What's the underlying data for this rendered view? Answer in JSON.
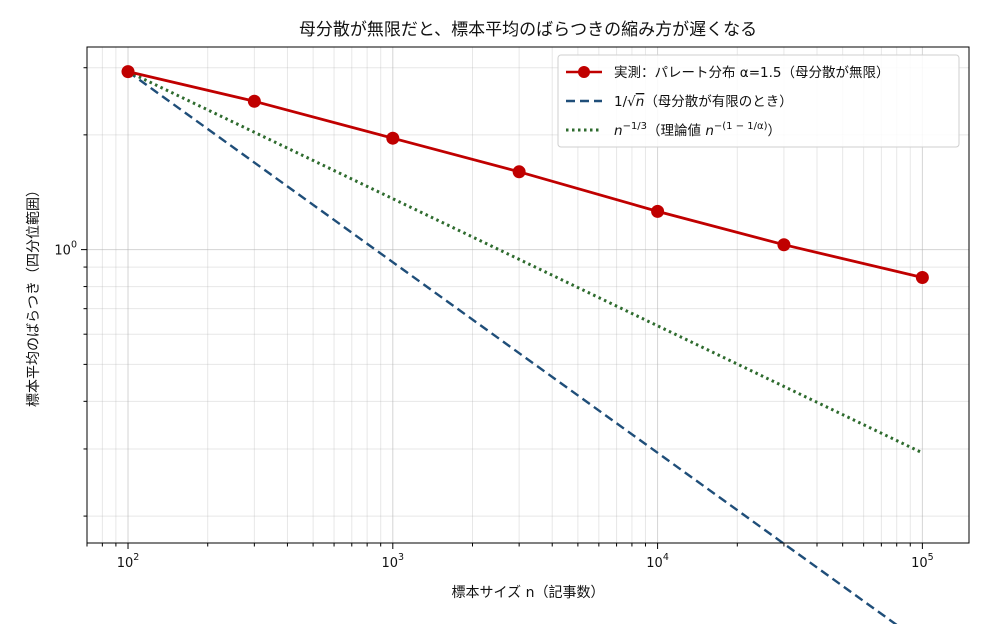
{
  "chart_data": {
    "type": "line",
    "title": "母分散が無限だと、標本平均のばらつきの縮み方が遅くなる",
    "xlabel": "標本サイズ n（記事数）",
    "ylabel": "標本平均のばらつき（四分位範囲）",
    "xscale": "log",
    "yscale": "log",
    "xlim": [
      70,
      150000
    ],
    "ylim": [
      0.17,
      3.4
    ],
    "x_ticks": [
      {
        "value": 100,
        "base": "10",
        "exp": "2"
      },
      {
        "value": 1000,
        "base": "10",
        "exp": "3"
      },
      {
        "value": 10000,
        "base": "10",
        "exp": "4"
      },
      {
        "value": 100000,
        "base": "10",
        "exp": "5"
      }
    ],
    "y_ticks": [
      {
        "value": 1,
        "base": "10",
        "exp": "0"
      }
    ],
    "grid": true,
    "legend_position": "top-right",
    "series": [
      {
        "name": "実測：パレート分布 α=1.5（母分散が無限）",
        "color": "#c00000",
        "style": "solid-markers",
        "x": [
          100,
          300,
          1000,
          3000,
          10000,
          30000,
          100000
        ],
        "values": [
          2.93,
          2.45,
          1.96,
          1.6,
          1.26,
          1.03,
          0.845
        ]
      },
      {
        "name": "1/√n（母分散が有限のとき）",
        "color": "#1f4e79",
        "style": "dashed",
        "x": [
          100,
          100000
        ],
        "values": [
          2.93,
          0.0927
        ]
      },
      {
        "name": "n^{-1/3}（理論値 n^{-(1-1/α)}）",
        "color": "#2e6b2e",
        "style": "dotted",
        "x": [
          100,
          100000
        ],
        "values": [
          2.93,
          0.293
        ]
      }
    ]
  },
  "legend": {
    "entry1": "実測：パレート分布 α=1.5（母分散が無限）",
    "entry2_pre": "1/√",
    "entry2_var": "n",
    "entry2_post": "（母分散が有限のとき）",
    "entry3_base": "n",
    "entry3_exp": "−1/3",
    "entry3_mid": "（理論値 ",
    "entry3_base2": "n",
    "entry3_exp2": "−(1 − 1/α)",
    "entry3_post": "）"
  }
}
